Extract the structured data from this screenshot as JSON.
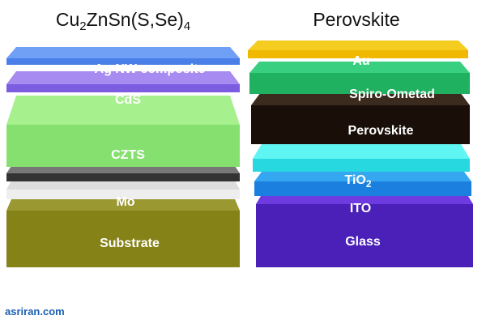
{
  "left": {
    "title": [
      "Cu",
      "2",
      "ZnSn(S,Se)",
      "4"
    ],
    "layers": [
      "Ag NW composite",
      "CdS",
      "CZTS",
      "Mo",
      "Substrate"
    ]
  },
  "right": {
    "title": "Perovskite",
    "layers": [
      "Au",
      "Spiro-Ometad",
      "Perovskite",
      [
        "TiO",
        "2"
      ],
      "ITO",
      "Glass"
    ]
  },
  "footer": "asriran.com"
}
